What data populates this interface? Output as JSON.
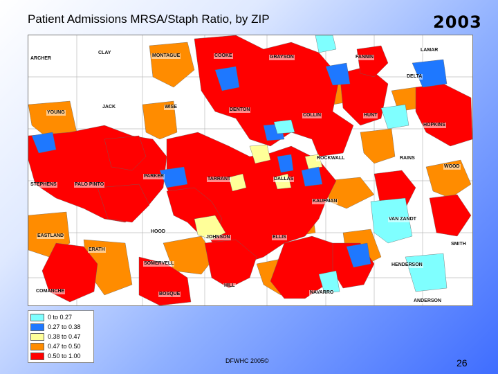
{
  "slide": {
    "title": "Patient Admissions MRSA/Staph Ratio, by ZIP",
    "year": "2003",
    "footer": "DFWHC 2005©",
    "page_number": "26"
  },
  "colors": {
    "cyan": "#7fffff",
    "blue": "#1e78ff",
    "yellow": "#ffff99",
    "orange": "#ff8c00",
    "red": "#ff0000",
    "white": "#ffffff"
  },
  "legend": [
    {
      "label": "0 to 0.27",
      "color": "#7fffff"
    },
    {
      "label": "0.27 to 0.38",
      "color": "#1e78ff"
    },
    {
      "label": "0.38 to 0.47",
      "color": "#ffff99"
    },
    {
      "label": "0.47 to 0.50",
      "color": "#ff8c00"
    },
    {
      "label": "0.50 to 1.00",
      "color": "#ff0000"
    }
  ],
  "counties": [
    "ARCHER",
    "CLAY",
    "MONTAGUE",
    "COOKE",
    "GRAYSON",
    "FANNIN",
    "LAMAR",
    "DELTA",
    "YOUNG",
    "JACK",
    "WISE",
    "DENTON",
    "COLLIN",
    "HUNT",
    "HOPKINS",
    "ROCKWALL",
    "RAINS",
    "WOOD",
    "STEPHENS",
    "PALO PINTO",
    "PARKER",
    "TARRANT",
    "DALLAS",
    "KAUFMAN",
    "VAN ZANDT",
    "EASTLAND",
    "HOOD",
    "JOHNSON",
    "ELLIS",
    "SMITH",
    "ERATH",
    "SOMERVELL",
    "HENDERSON",
    "COMANCHE",
    "HILL",
    "BOSQUE",
    "NAVARRO",
    "ANDERSON"
  ]
}
